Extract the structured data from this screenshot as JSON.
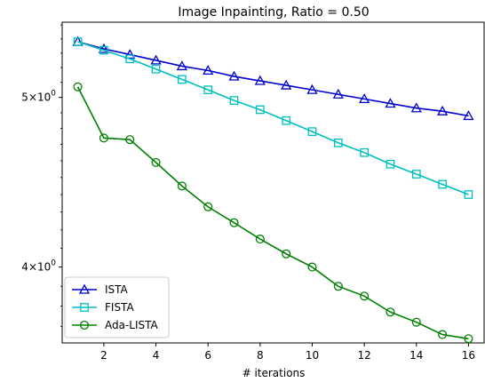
{
  "chart_data": {
    "type": "line",
    "title": "Image Inpainting, Ratio = 0.50",
    "xlabel": "# iterations",
    "ylabel": "",
    "yscale": "log",
    "xlim": [
      0.4,
      16.6
    ],
    "ylim": [
      3.62,
      5.52
    ],
    "x": [
      1,
      2,
      3,
      4,
      5,
      6,
      7,
      8,
      9,
      10,
      11,
      12,
      13,
      14,
      15,
      16
    ],
    "x_ticks": [
      2,
      4,
      6,
      8,
      10,
      12,
      14,
      16
    ],
    "y_ticks": [
      {
        "value": 4,
        "base": "4",
        "exp": "0"
      },
      {
        "value": 5,
        "base": "5",
        "exp": "0"
      }
    ],
    "y_tick_mult": "×10",
    "legend_position": "lower-left",
    "series": [
      {
        "name": "ISTA",
        "color": "#0000cc",
        "marker": "triangle",
        "values": [
          5.38,
          5.33,
          5.29,
          5.25,
          5.21,
          5.18,
          5.14,
          5.11,
          5.08,
          5.05,
          5.02,
          4.99,
          4.96,
          4.93,
          4.91,
          4.88
        ]
      },
      {
        "name": "FISTA",
        "color": "#00bfbf",
        "marker": "square",
        "values": [
          5.38,
          5.32,
          5.26,
          5.19,
          5.12,
          5.05,
          4.98,
          4.92,
          4.85,
          4.78,
          4.71,
          4.65,
          4.58,
          4.52,
          4.46,
          4.4
        ]
      },
      {
        "name": "Ada-LISTA",
        "color": "#008000",
        "marker": "circle",
        "values": [
          5.07,
          4.74,
          4.73,
          4.59,
          4.45,
          4.33,
          4.24,
          4.15,
          4.07,
          4.0,
          3.9,
          3.85,
          3.77,
          3.72,
          3.66,
          3.64
        ]
      }
    ]
  }
}
